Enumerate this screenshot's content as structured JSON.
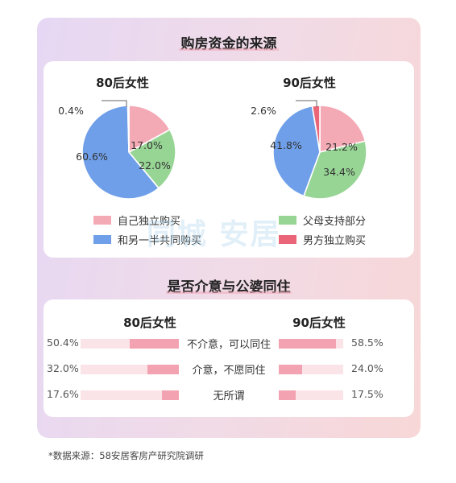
{
  "section1_title": "购房资金的来源",
  "section2_title": "是否介意与公婆同住",
  "colors": {
    "self": "#f4aab5",
    "parents": "#97d595",
    "joint": "#6f9fe9",
    "husband": "#ea6577",
    "bar": "#f2a2b0",
    "track": "#fbe4e8"
  },
  "legend": {
    "self": "自己独立购买",
    "parents": "父母支持部分",
    "joint": "和另一半共同购买",
    "husband": "男方独立购买"
  },
  "chart_data": [
    {
      "type": "pie",
      "title": "80后女性",
      "slices": [
        {
          "key": "self",
          "label": "自己独立购买",
          "value": 17.0,
          "text": "17.0%"
        },
        {
          "key": "parents",
          "label": "父母支持部分",
          "value": 22.0,
          "text": "22.0%"
        },
        {
          "key": "joint",
          "label": "和另一半共同购买",
          "value": 60.6,
          "text": "60.6%"
        },
        {
          "key": "husband",
          "label": "男方独立购买",
          "value": 0.4,
          "text": "0.4%"
        }
      ]
    },
    {
      "type": "pie",
      "title": "90后女性",
      "slices": [
        {
          "key": "self",
          "label": "自己独立购买",
          "value": 21.2,
          "text": "21.2%"
        },
        {
          "key": "parents",
          "label": "父母支持部分",
          "value": 34.4,
          "text": "34.4%"
        },
        {
          "key": "joint",
          "label": "和另一半共同购买",
          "value": 41.8,
          "text": "41.8%"
        },
        {
          "key": "husband",
          "label": "男方独立购买",
          "value": 2.6,
          "text": "2.6%"
        }
      ]
    },
    {
      "type": "bar",
      "orientation": "horizontal-butterfly",
      "categories": [
        "不介意，可以同住",
        "介意，不愿同住",
        "无所谓"
      ],
      "series": [
        {
          "name": "80后女性",
          "values": [
            50.4,
            32.0,
            17.6
          ],
          "texts": [
            "50.4%",
            "32.0%",
            "17.6%"
          ]
        },
        {
          "name": "90后女性",
          "values": [
            58.5,
            24.0,
            17.5
          ],
          "texts": [
            "58.5%",
            "24.0%",
            "17.5%"
          ]
        }
      ],
      "xlim": [
        0,
        100
      ]
    }
  ],
  "watermark": "同城 安居",
  "source": "*数据来源：58安居客房产研究院调研"
}
